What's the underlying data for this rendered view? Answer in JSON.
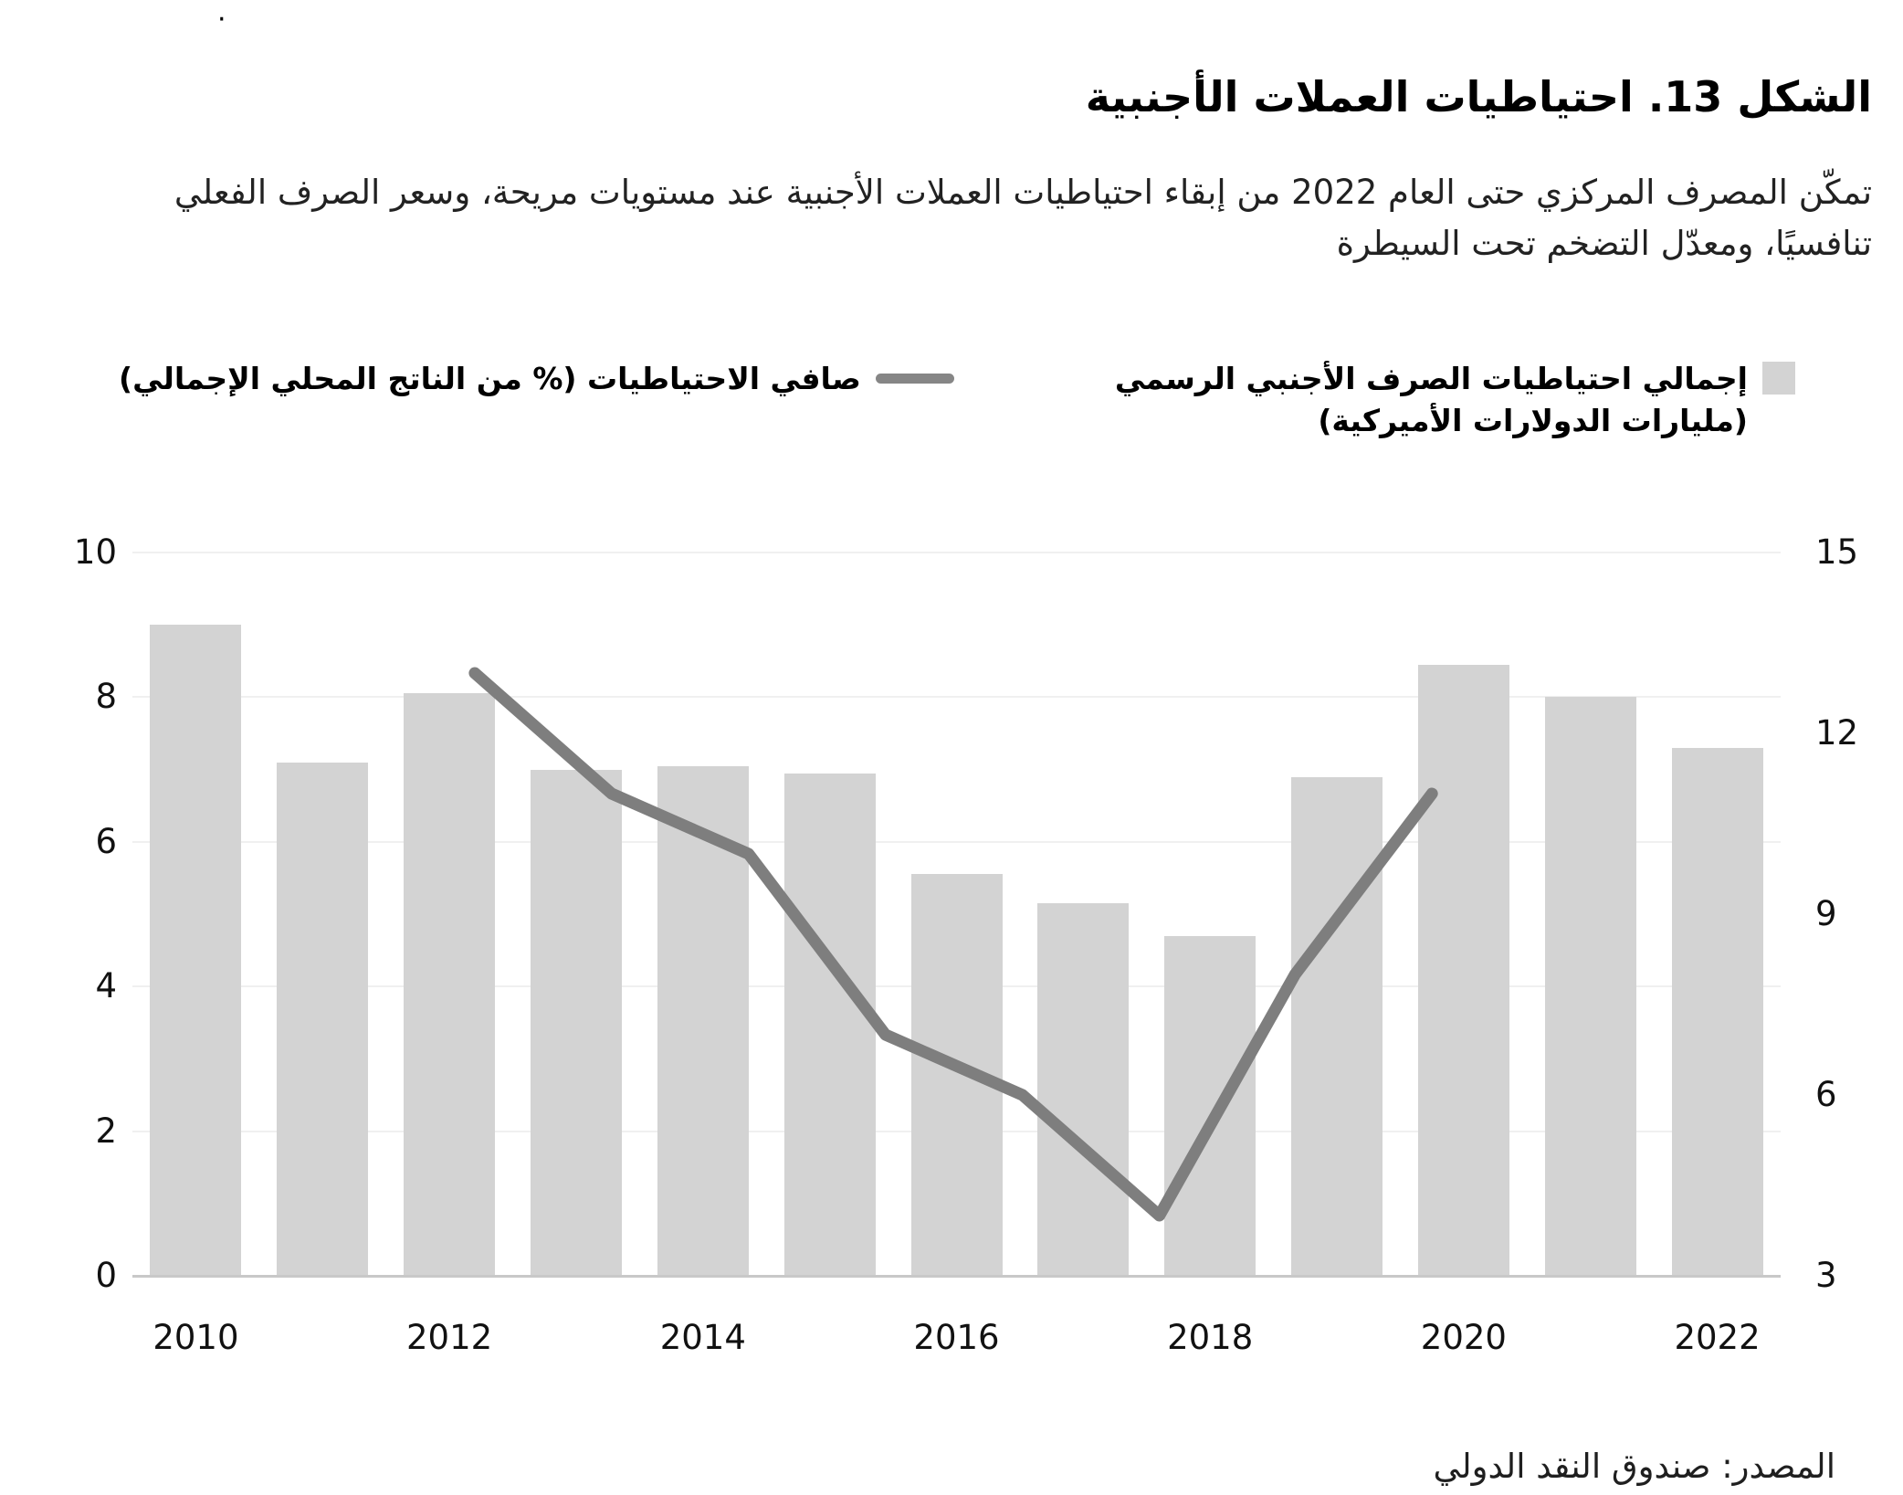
{
  "page": {
    "stray_dot": "·"
  },
  "header": {
    "title": "الشكل 13. احتياطيات العملات الأجنبية",
    "subtitle": "تمكّن المصرف المركزي حتى العام 2022 من إبقاء احتياطيات العملات الأجنبية عند مستويات مريحة، وسعر الصرف الفعلي تنافسيًا، ومعدّل التضخم تحت السيطرة"
  },
  "legend": {
    "bars": {
      "label_line1": "إجمالي احتياطيات الصرف الأجنبي الرسمي",
      "label_line2": "(مليارات الدولارات الأميركية)",
      "swatch_color": "#d3d3d3"
    },
    "line": {
      "label": "صافي الاحتياطيات (% من الناتج المحلي الإجمالي)",
      "swatch_color": "#868686"
    }
  },
  "source": "المصدر: صندوق النقد الدولي",
  "chart_data": {
    "type": "bar",
    "title": "الشكل 13. احتياطيات العملات الأجنبية",
    "categories": [
      2010,
      2011,
      2012,
      2013,
      2014,
      2015,
      2016,
      2017,
      2018,
      2019,
      2020,
      2021,
      2022
    ],
    "bar_series": {
      "name": "إجمالي احتياطيات الصرف الأجنبي الرسمي (مليارات الدولارات الأميركية)",
      "axis": "left",
      "values": [
        9.0,
        7.1,
        8.05,
        7.0,
        7.05,
        6.95,
        5.55,
        5.15,
        4.7,
        6.9,
        8.45,
        8.0,
        7.3
      ]
    },
    "line_series": {
      "name": "صافي الاحتياطيات (% من الناتج المحلي الإجمالي)",
      "axis": "right",
      "type": "line",
      "year_positions": [
        2012.2,
        2013.28,
        2014.36,
        2015.44,
        2016.52,
        2017.6,
        2018.67,
        2019.75
      ],
      "values": [
        13,
        11,
        10,
        7,
        6,
        4,
        8,
        11
      ]
    },
    "left_axis": {
      "min": 0,
      "max": 10,
      "ticks": [
        0,
        2,
        4,
        6,
        8,
        10
      ]
    },
    "right_axis": {
      "min": 3,
      "max": 15,
      "ticks": [
        3,
        6,
        9,
        12,
        15
      ]
    },
    "x_ticks": [
      2010,
      2012,
      2014,
      2016,
      2018,
      2020,
      2022
    ],
    "grid": true,
    "legend_position": "top",
    "colors": {
      "bar": "#d3d3d3",
      "line": "#7e7e7e",
      "gridline": "#f0f0f0",
      "axis_line": "#c8c8c8"
    }
  }
}
